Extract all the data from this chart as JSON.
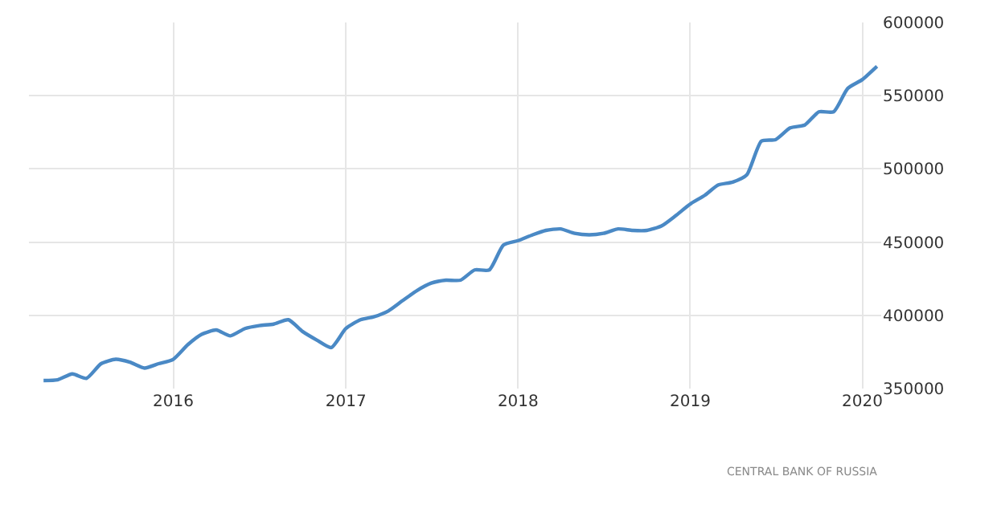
{
  "chart_data": {
    "type": "line",
    "x": [
      "2015-04",
      "2015-05",
      "2015-06",
      "2015-07",
      "2015-08",
      "2015-09",
      "2015-10",
      "2015-11",
      "2015-12",
      "2016-01",
      "2016-02",
      "2016-03",
      "2016-04",
      "2016-05",
      "2016-06",
      "2016-07",
      "2016-08",
      "2016-09",
      "2016-10",
      "2016-11",
      "2016-12",
      "2017-01",
      "2017-02",
      "2017-03",
      "2017-04",
      "2017-05",
      "2017-06",
      "2017-07",
      "2017-08",
      "2017-09",
      "2017-10",
      "2017-11",
      "2017-12",
      "2018-01",
      "2018-02",
      "2018-03",
      "2018-04",
      "2018-05",
      "2018-06",
      "2018-07",
      "2018-08",
      "2018-09",
      "2018-10",
      "2018-11",
      "2018-12",
      "2019-01",
      "2019-02",
      "2019-03",
      "2019-04",
      "2019-05",
      "2019-06",
      "2019-07",
      "2019-08",
      "2019-09",
      "2019-10",
      "2019-11",
      "2019-12",
      "2020-01",
      "2020-02"
    ],
    "series": [
      {
        "color": "#4a89c5",
        "values": [
          355500,
          356000,
          360000,
          357000,
          367000,
          370000,
          368000,
          364000,
          367000,
          370000,
          380000,
          387000,
          390000,
          386000,
          391000,
          393000,
          394000,
          397000,
          389000,
          383000,
          378000,
          391000,
          397000,
          399000,
          403000,
          410000,
          417000,
          422000,
          424000,
          424000,
          431000,
          431000,
          448000,
          451000,
          455000,
          458000,
          459000,
          456000,
          455000,
          456000,
          459000,
          458000,
          458000,
          461000,
          468000,
          476000,
          482000,
          489000,
          491000,
          496000,
          519000,
          520000,
          528000,
          530000,
          539000,
          539000,
          555000,
          561000,
          570000
        ]
      }
    ],
    "xlim": [
      "2015-03-01",
      "2020-02-10"
    ],
    "xticks": [
      {
        "value": "2016-01-01",
        "label": "2016"
      },
      {
        "value": "2017-01-01",
        "label": "2017"
      },
      {
        "value": "2018-01-01",
        "label": "2018"
      },
      {
        "value": "2019-01-01",
        "label": "2019"
      },
      {
        "value": "2020-01-01",
        "label": "2020"
      }
    ],
    "ylim": [
      350000,
      600000
    ],
    "yticks": [
      350000,
      400000,
      450000,
      500000,
      550000,
      600000
    ],
    "grid": true,
    "legend": false,
    "marker": "none",
    "line_style": "solid",
    "annotations": [
      "CENTRAL BANK OF RUSSIA"
    ]
  }
}
